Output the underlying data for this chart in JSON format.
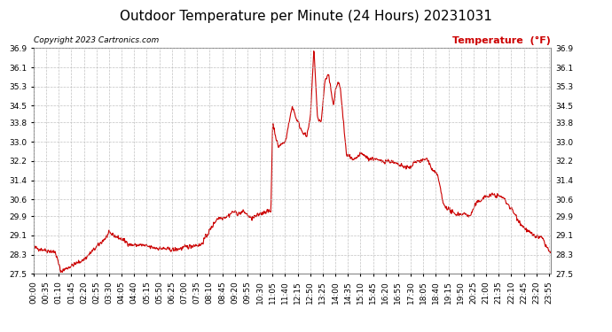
{
  "title": "Outdoor Temperature per Minute (24 Hours) 20231031",
  "copyright_text": "Copyright 2023 Cartronics.com",
  "legend_text": "Temperature  (°F)",
  "legend_color": "#cc0000",
  "line_color": "#cc0000",
  "background_color": "#ffffff",
  "grid_color": "#bbbbbb",
  "ylim": [
    27.5,
    36.9
  ],
  "yticks": [
    27.5,
    28.3,
    29.1,
    29.9,
    30.6,
    31.4,
    32.2,
    33.0,
    33.8,
    34.5,
    35.3,
    36.1,
    36.9
  ],
  "xtick_interval_minutes": 35,
  "total_minutes": 1440,
  "title_fontsize": 11,
  "label_fontsize": 6.5,
  "copyright_fontsize": 6.5,
  "legend_fontsize": 8,
  "keypoints_min": [
    0,
    60,
    75,
    100,
    140,
    200,
    210,
    250,
    270,
    300,
    330,
    390,
    450,
    465,
    510,
    540,
    555,
    570,
    585,
    605,
    620,
    630,
    645,
    660,
    665,
    680,
    700,
    720,
    730,
    745,
    760,
    770,
    780,
    790,
    800,
    810,
    820,
    835,
    840,
    850,
    855,
    870,
    890,
    910,
    925,
    930,
    950,
    960,
    990,
    1020,
    1050,
    1060,
    1080,
    1095,
    1110,
    1125,
    1140,
    1155,
    1170,
    1185,
    1200,
    1215,
    1230,
    1255,
    1280,
    1305,
    1330,
    1360,
    1390,
    1415,
    1440
  ],
  "keypoints_temp": [
    28.6,
    28.4,
    27.6,
    27.8,
    28.1,
    29.0,
    29.2,
    28.9,
    28.7,
    28.7,
    28.6,
    28.5,
    28.7,
    28.7,
    29.8,
    29.9,
    30.1,
    30.0,
    30.1,
    29.8,
    29.9,
    30.0,
    30.1,
    30.1,
    33.8,
    32.8,
    33.0,
    34.5,
    34.0,
    33.5,
    33.2,
    34.0,
    36.9,
    34.0,
    33.8,
    35.5,
    35.8,
    34.5,
    35.2,
    35.5,
    35.0,
    32.5,
    32.2,
    32.5,
    32.4,
    32.3,
    32.3,
    32.2,
    32.2,
    32.0,
    31.9,
    32.2,
    32.2,
    32.3,
    31.8,
    31.6,
    30.4,
    30.2,
    30.0,
    30.0,
    30.0,
    29.9,
    30.4,
    30.7,
    30.8,
    30.7,
    30.2,
    29.5,
    29.1,
    29.0,
    28.3
  ]
}
